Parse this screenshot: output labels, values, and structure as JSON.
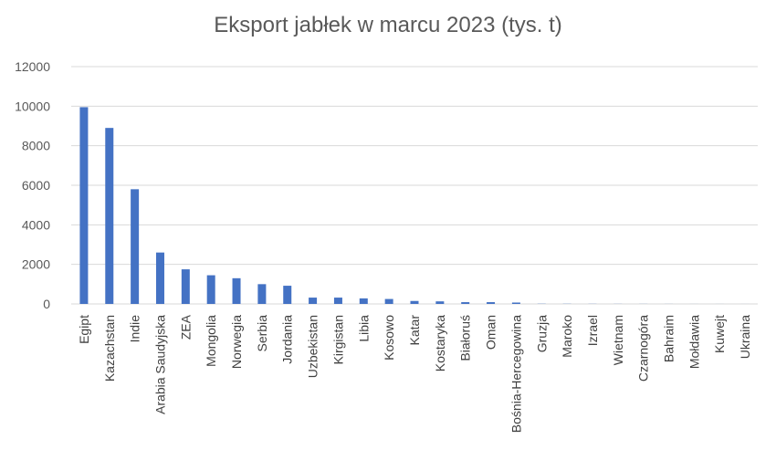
{
  "chart_data": {
    "type": "bar",
    "title": "Eksport jabłek w marcu 2023 (tys. t)",
    "xlabel": "",
    "ylabel": "",
    "ylim": [
      0,
      12000
    ],
    "yticks": [
      0,
      2000,
      4000,
      6000,
      8000,
      10000,
      12000
    ],
    "grid": true,
    "legend": "none",
    "bar_color": "#4472C4",
    "categories": [
      "Egipt",
      "Kazachstan",
      "Indie",
      "Arabia Saudyjska",
      "ZEA",
      "Mongolia",
      "Norwegia",
      "Serbia",
      "Jordania",
      "Uzbekistan",
      "Kirgistan",
      "Libia",
      "Kosowo",
      "Katar",
      "Kostaryka",
      "Białoruś",
      "Oman",
      "Bośnia-Hercegowina",
      "Gruzja",
      "Maroko",
      "Izrael",
      "Wietnam",
      "Czarnogóra",
      "Bahraim",
      "Mołdawia",
      "Kuwejt",
      "Ukraina"
    ],
    "values": [
      9950,
      8900,
      5800,
      2600,
      1750,
      1450,
      1300,
      1000,
      920,
      320,
      320,
      280,
      250,
      150,
      130,
      90,
      90,
      70,
      10,
      8,
      6,
      5,
      4,
      3,
      2,
      2,
      1
    ]
  }
}
